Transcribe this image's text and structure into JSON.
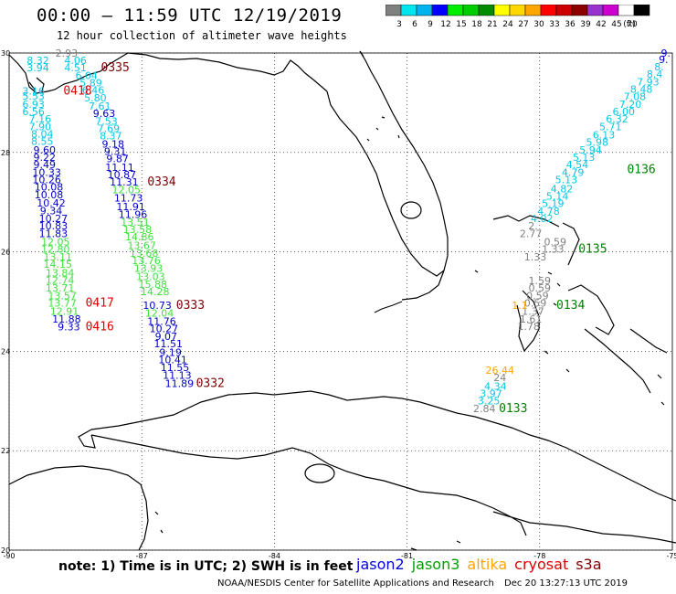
{
  "header": {
    "title": "00:00 – 11:59 UTC 12/19/2019",
    "subtitle": "12 hour collection of altimeter wave heights"
  },
  "colorbar": {
    "unit_label": "(ft)",
    "bins": [
      {
        "color": "#808080",
        "label": "3"
      },
      {
        "color": "#00e5ee",
        "label": "6"
      },
      {
        "color": "#00b2ee",
        "label": "9"
      },
      {
        "color": "#0000ff",
        "label": "12"
      },
      {
        "color": "#00ee00",
        "label": "15"
      },
      {
        "color": "#00cd00",
        "label": "18"
      },
      {
        "color": "#008b00",
        "label": "21"
      },
      {
        "color": "#ffff00",
        "label": "24"
      },
      {
        "color": "#ffd700",
        "label": "27"
      },
      {
        "color": "#ffa500",
        "label": "30"
      },
      {
        "color": "#ff0000",
        "label": "33"
      },
      {
        "color": "#cd0000",
        "label": "36"
      },
      {
        "color": "#8b0000",
        "label": "39"
      },
      {
        "color": "#9a32cd",
        "label": "42"
      },
      {
        "color": "#cd00cd",
        "label": "45"
      },
      {
        "color": "#ffffff",
        "label": "70"
      },
      {
        "color": "#000000",
        "label": ""
      }
    ]
  },
  "map": {
    "lon_range": [
      -90,
      -75
    ],
    "lat_range": [
      20,
      30
    ],
    "lon_ticks": [
      {
        "value": -90,
        "label": "-90"
      },
      {
        "value": -87,
        "label": "-87"
      },
      {
        "value": -84,
        "label": "-84"
      },
      {
        "value": -81,
        "label": "-81"
      },
      {
        "value": -78,
        "label": "-78"
      },
      {
        "value": -75,
        "label": "-75"
      }
    ],
    "lat_ticks": [
      {
        "value": 30,
        "label": "30"
      },
      {
        "value": 28,
        "label": "28"
      },
      {
        "value": 26,
        "label": "26"
      },
      {
        "value": 24,
        "label": "24"
      },
      {
        "value": 22,
        "label": "22"
      },
      {
        "value": 20,
        "label": "20"
      }
    ],
    "colors": {
      "gray": "#808080",
      "cyan": "#00c8e6",
      "blue": "#0000c8",
      "lime": "#40e040",
      "orange": "#ffa500",
      "time_dark": "#800000",
      "time_red": "#e00000",
      "time_green": "#008000",
      "time_gray": "#606060"
    }
  },
  "tracks": [
    {
      "name": "track-0335",
      "time": "0335",
      "time_lon": -87.6,
      "time_lat": 29.63,
      "time_color": "time_dark",
      "points": [
        {
          "lon": -88.7,
          "lat": 29.93,
          "value": "2.93",
          "color": "gray"
        },
        {
          "lon": -89.35,
          "lat": 29.78,
          "value": "8.32",
          "color": "cyan"
        },
        {
          "lon": -88.5,
          "lat": 29.78,
          "value": "4.06",
          "color": "cyan"
        },
        {
          "lon": -89.35,
          "lat": 29.63,
          "value": "3.94",
          "color": "cyan"
        },
        {
          "lon": -88.5,
          "lat": 29.63,
          "value": "4.51",
          "color": "cyan"
        },
        {
          "lon": -88.25,
          "lat": 29.48,
          "value": "6.04",
          "color": "cyan"
        },
        {
          "lon": -88.15,
          "lat": 29.33,
          "value": "5.89",
          "color": "cyan"
        },
        {
          "lon": -88.1,
          "lat": 29.18,
          "value": "6.46",
          "color": "cyan"
        },
        {
          "lon": -88.05,
          "lat": 29.03,
          "value": "5.80",
          "color": "cyan"
        },
        {
          "lon": -87.95,
          "lat": 28.86,
          "value": "7.61",
          "color": "cyan"
        },
        {
          "lon": -87.85,
          "lat": 28.71,
          "value": "9.63",
          "color": "blue"
        },
        {
          "lon": -87.8,
          "lat": 28.56,
          "value": "7.53",
          "color": "cyan"
        },
        {
          "lon": -87.75,
          "lat": 28.41,
          "value": "7.69",
          "color": "cyan"
        },
        {
          "lon": -87.7,
          "lat": 28.26,
          "value": "8.37",
          "color": "cyan"
        },
        {
          "lon": -87.65,
          "lat": 28.1,
          "value": "9.18",
          "color": "blue"
        },
        {
          "lon": -87.6,
          "lat": 27.95,
          "value": "9.31",
          "color": "blue"
        },
        {
          "lon": -87.55,
          "lat": 27.8,
          "value": "9.87",
          "color": "blue"
        },
        {
          "lon": -87.5,
          "lat": 27.63,
          "value": "11.11",
          "color": "blue"
        },
        {
          "lon": -87.45,
          "lat": 27.48,
          "value": "10.87",
          "color": "blue"
        },
        {
          "lon": -87.4,
          "lat": 27.33,
          "value": "11.31",
          "color": "blue"
        }
      ]
    },
    {
      "name": "track-0418",
      "time": "0418",
      "time_lon": -88.45,
      "time_lat": 29.16,
      "time_color": "time_red",
      "points": [
        {
          "lon": -89.45,
          "lat": 29.16,
          "value": "3.16",
          "color": "cyan"
        },
        {
          "lon": -89.45,
          "lat": 29.06,
          "value": "5.53",
          "color": "cyan"
        },
        {
          "lon": -89.45,
          "lat": 28.9,
          "value": "6.93",
          "color": "cyan"
        },
        {
          "lon": -89.45,
          "lat": 28.75,
          "value": "6.56",
          "color": "cyan"
        },
        {
          "lon": -89.3,
          "lat": 28.6,
          "value": "7.16",
          "color": "cyan"
        },
        {
          "lon": -89.3,
          "lat": 28.45,
          "value": "7.90",
          "color": "cyan"
        },
        {
          "lon": -89.25,
          "lat": 28.3,
          "value": "8.04",
          "color": "cyan"
        },
        {
          "lon": -89.25,
          "lat": 28.15,
          "value": "8.55",
          "color": "cyan"
        },
        {
          "lon": -89.2,
          "lat": 27.98,
          "value": "9.60",
          "color": "blue"
        },
        {
          "lon": -89.2,
          "lat": 27.83,
          "value": "9.22",
          "color": "blue"
        },
        {
          "lon": -89.2,
          "lat": 27.68,
          "value": "9.49",
          "color": "blue"
        },
        {
          "lon": -89.15,
          "lat": 27.53,
          "value": "10.33",
          "color": "blue"
        },
        {
          "lon": -89.15,
          "lat": 27.38,
          "value": "10.26",
          "color": "blue"
        },
        {
          "lon": -89.1,
          "lat": 27.23,
          "value": "10.08",
          "color": "blue"
        },
        {
          "lon": -89.1,
          "lat": 27.08,
          "value": "10.08",
          "color": "blue"
        },
        {
          "lon": -89.05,
          "lat": 26.91,
          "value": "10.42",
          "color": "blue"
        },
        {
          "lon": -89.05,
          "lat": 26.76,
          "value": "9.34",
          "color": "blue"
        },
        {
          "lon": -89.0,
          "lat": 26.6,
          "value": "10.27",
          "color": "blue"
        },
        {
          "lon": -89.0,
          "lat": 26.45,
          "value": "10.83",
          "color": "blue"
        },
        {
          "lon": -89.0,
          "lat": 26.3,
          "value": "11.83",
          "color": "blue"
        },
        {
          "lon": -88.95,
          "lat": 26.13,
          "value": "12.05",
          "color": "lime"
        },
        {
          "lon": -88.95,
          "lat": 25.98,
          "value": "12.80",
          "color": "lime"
        },
        {
          "lon": -88.9,
          "lat": 25.83,
          "value": "13.11",
          "color": "lime"
        },
        {
          "lon": -88.9,
          "lat": 25.68,
          "value": "14.15",
          "color": "lime"
        },
        {
          "lon": -88.85,
          "lat": 25.51,
          "value": "13.84",
          "color": "lime"
        },
        {
          "lon": -88.85,
          "lat": 25.36,
          "value": "12.74",
          "color": "lime"
        },
        {
          "lon": -88.85,
          "lat": 25.2,
          "value": "13.71",
          "color": "lime"
        },
        {
          "lon": -88.8,
          "lat": 25.05,
          "value": "13.57",
          "color": "lime"
        },
        {
          "lon": -88.8,
          "lat": 24.9,
          "value": "13.77",
          "color": "lime"
        },
        {
          "lon": -88.75,
          "lat": 24.73,
          "value": "12.91",
          "color": "lime"
        },
        {
          "lon": -88.7,
          "lat": 24.58,
          "value": "11.88",
          "color": "blue"
        },
        {
          "lon": -88.65,
          "lat": 24.42,
          "value": "9.33",
          "color": "blue"
        }
      ]
    },
    {
      "name": "track-0334",
      "time": "0334",
      "time_lon": -86.55,
      "time_lat": 27.33,
      "time_color": "time_dark",
      "points": [
        {
          "lon": -87.35,
          "lat": 27.18,
          "value": "12.05",
          "color": "lime"
        },
        {
          "lon": -87.3,
          "lat": 27.01,
          "value": "11.73",
          "color": "blue"
        },
        {
          "lon": -87.25,
          "lat": 26.84,
          "value": "11.91",
          "color": "blue"
        },
        {
          "lon": -87.2,
          "lat": 26.68,
          "value": "11.96",
          "color": "blue"
        },
        {
          "lon": -87.15,
          "lat": 26.53,
          "value": "13.51",
          "color": "lime"
        },
        {
          "lon": -87.1,
          "lat": 26.38,
          "value": "13.58",
          "color": "lime"
        },
        {
          "lon": -87.05,
          "lat": 26.23,
          "value": "14.86",
          "color": "lime"
        },
        {
          "lon": -87.0,
          "lat": 26.06,
          "value": "13.67",
          "color": "lime"
        },
        {
          "lon": -86.95,
          "lat": 25.9,
          "value": "13.68",
          "color": "lime"
        },
        {
          "lon": -86.9,
          "lat": 25.75,
          "value": "13.76",
          "color": "lime"
        },
        {
          "lon": -86.85,
          "lat": 25.6,
          "value": "13.93",
          "color": "lime"
        },
        {
          "lon": -86.8,
          "lat": 25.43,
          "value": "13.03",
          "color": "lime"
        },
        {
          "lon": -86.75,
          "lat": 25.28,
          "value": "15.88",
          "color": "lime"
        },
        {
          "lon": -86.7,
          "lat": 25.13,
          "value": "14.28",
          "color": "lime"
        }
      ]
    },
    {
      "name": "track-0417",
      "time": "0417",
      "time_lon": -87.95,
      "time_lat": 24.9,
      "time_color": "time_red",
      "points": []
    },
    {
      "name": "track-0416",
      "time": "0416",
      "time_lon": -87.95,
      "time_lat": 24.42,
      "time_color": "time_red",
      "points": []
    },
    {
      "name": "track-0333",
      "time": "0333",
      "time_lon": -85.9,
      "time_lat": 24.85,
      "time_color": "time_dark",
      "points": [
        {
          "lon": -86.65,
          "lat": 24.85,
          "value": "10.73",
          "color": "blue"
        },
        {
          "lon": -86.6,
          "lat": 24.7,
          "value": "12.04",
          "color": "lime"
        },
        {
          "lon": -86.55,
          "lat": 24.53,
          "value": "11.76",
          "color": "blue"
        },
        {
          "lon": -86.5,
          "lat": 24.38,
          "value": "10.27",
          "color": "blue"
        },
        {
          "lon": -86.45,
          "lat": 24.23,
          "value": "9.07",
          "color": "blue"
        },
        {
          "lon": -86.4,
          "lat": 24.08,
          "value": "11.51",
          "color": "blue"
        },
        {
          "lon": -86.35,
          "lat": 23.91,
          "value": "9.19",
          "color": "blue"
        },
        {
          "lon": -86.3,
          "lat": 23.76,
          "value": "10.41",
          "color": "blue"
        },
        {
          "lon": -86.25,
          "lat": 23.6,
          "value": "11.55",
          "color": "blue"
        },
        {
          "lon": -86.2,
          "lat": 23.45,
          "value": "11.13",
          "color": "blue"
        },
        {
          "lon": -86.15,
          "lat": 23.28,
          "value": "11.89",
          "color": "blue"
        }
      ]
    },
    {
      "name": "track-0332",
      "time": "0332",
      "time_lon": -85.45,
      "time_lat": 23.28,
      "time_color": "time_dark",
      "points": []
    },
    {
      "name": "track-0136",
      "time": "0136",
      "time_lon": -75.7,
      "time_lat": 27.58,
      "time_color": "time_green",
      "points": [
        {
          "lon": -75.15,
          "lat": 29.93,
          "value": "9.",
          "color": "blue"
        },
        {
          "lon": -75.2,
          "lat": 29.8,
          "value": "9.",
          "color": "blue"
        },
        {
          "lon": -75.3,
          "lat": 29.65,
          "value": "8.",
          "color": "cyan"
        },
        {
          "lon": -75.4,
          "lat": 29.5,
          "value": "8.4",
          "color": "cyan"
        },
        {
          "lon": -75.55,
          "lat": 29.35,
          "value": "7.93",
          "color": "cyan"
        },
        {
          "lon": -75.7,
          "lat": 29.2,
          "value": "8.48",
          "color": "cyan"
        },
        {
          "lon": -75.85,
          "lat": 29.05,
          "value": "7.08",
          "color": "cyan"
        },
        {
          "lon": -75.95,
          "lat": 28.9,
          "value": "7.20",
          "color": "cyan"
        },
        {
          "lon": -76.1,
          "lat": 28.75,
          "value": "6.00",
          "color": "cyan"
        },
        {
          "lon": -76.25,
          "lat": 28.6,
          "value": "6.32",
          "color": "cyan"
        },
        {
          "lon": -76.4,
          "lat": 28.45,
          "value": "5.71",
          "color": "cyan"
        },
        {
          "lon": -76.55,
          "lat": 28.28,
          "value": "6.13",
          "color": "cyan"
        },
        {
          "lon": -76.7,
          "lat": 28.13,
          "value": "5.98",
          "color": "cyan"
        },
        {
          "lon": -76.85,
          "lat": 27.98,
          "value": "5.94",
          "color": "cyan"
        },
        {
          "lon": -77.0,
          "lat": 27.83,
          "value": "5.13",
          "color": "cyan"
        },
        {
          "lon": -77.15,
          "lat": 27.68,
          "value": "4.54",
          "color": "cyan"
        },
        {
          "lon": -77.25,
          "lat": 27.53,
          "value": "4.79",
          "color": "cyan"
        },
        {
          "lon": -77.4,
          "lat": 27.38,
          "value": "5.13",
          "color": "cyan"
        },
        {
          "lon": -77.5,
          "lat": 27.2,
          "value": "4.82",
          "color": "cyan"
        },
        {
          "lon": -77.6,
          "lat": 27.05,
          "value": "5.14",
          "color": "cyan"
        },
        {
          "lon": -77.7,
          "lat": 26.9,
          "value": "5.19",
          "color": "cyan"
        },
        {
          "lon": -77.8,
          "lat": 26.75,
          "value": "4.78",
          "color": "cyan"
        },
        {
          "lon": -77.95,
          "lat": 26.6,
          "value": "4.02",
          "color": "cyan"
        }
      ]
    },
    {
      "name": "track-0135",
      "time": "0135",
      "time_lon": -76.8,
      "time_lat": 25.98,
      "time_color": "time_green",
      "points": [
        {
          "lon": -78.15,
          "lat": 26.45,
          "value": "2.",
          "color": "gray"
        },
        {
          "lon": -78.2,
          "lat": 26.3,
          "value": "2.77",
          "color": "gray"
        },
        {
          "lon": -77.65,
          "lat": 26.13,
          "value": "0.59",
          "color": "gray"
        },
        {
          "lon": -77.7,
          "lat": 25.98,
          "value": "1.33",
          "color": "gray"
        },
        {
          "lon": -78.1,
          "lat": 25.83,
          "value": "1.33",
          "color": "gray"
        },
        {
          "lon": -78.0,
          "lat": 25.35,
          "value": "1.59",
          "color": "gray"
        },
        {
          "lon": -78.0,
          "lat": 25.2,
          "value": "0.59",
          "color": "gray"
        },
        {
          "lon": -78.05,
          "lat": 25.05,
          "value": "0.59",
          "color": "gray"
        },
        {
          "lon": -78.1,
          "lat": 24.9,
          "value": "0.59",
          "color": "gray"
        },
        {
          "lon": -78.15,
          "lat": 24.73,
          "value": "1.37",
          "color": "gray"
        },
        {
          "lon": -78.2,
          "lat": 24.58,
          "value": "1.61",
          "color": "gray"
        },
        {
          "lon": -78.25,
          "lat": 24.43,
          "value": "1.78",
          "color": "gray"
        }
      ]
    },
    {
      "name": "track-0134",
      "time": "0134",
      "time_lon": -77.3,
      "time_lat": 24.85,
      "time_color": "time_green",
      "points": [
        {
          "lon": -78.45,
          "lat": 24.85,
          "value": "1.1",
          "color": "orange"
        },
        {
          "lon": -78.9,
          "lat": 23.55,
          "value": "26.44",
          "color": "orange"
        },
        {
          "lon": -78.9,
          "lat": 23.4,
          "value": "24",
          "color": "gray"
        },
        {
          "lon": -79.0,
          "lat": 23.23,
          "value": "4.34",
          "color": "cyan"
        },
        {
          "lon": -79.1,
          "lat": 23.08,
          "value": "3.97",
          "color": "cyan"
        },
        {
          "lon": -79.15,
          "lat": 22.93,
          "value": "3.25",
          "color": "cyan"
        },
        {
          "lon": -79.25,
          "lat": 22.78,
          "value": "2.84",
          "color": "gray"
        }
      ]
    },
    {
      "name": "track-0133",
      "time": "0133",
      "time_lon": -78.6,
      "time_lat": 22.78,
      "time_color": "time_green",
      "points": []
    }
  ],
  "notes": {
    "note_text": "note: 1) Time is in UTC; 2) SWH is in feet",
    "legend": [
      {
        "label": "jason2",
        "color": "#0000e0"
      },
      {
        "label": "jason3",
        "color": "#00a000"
      },
      {
        "label": "altika",
        "color": "#ffa500"
      },
      {
        "label": "cryosat",
        "color": "#e00000"
      },
      {
        "label": "s3a",
        "color": "#800000"
      }
    ],
    "footer_center": "NOAA/NESDIS Center for Satellite Applications and Research",
    "footer_date": "Dec 20 13:27:13 UTC 2019"
  }
}
